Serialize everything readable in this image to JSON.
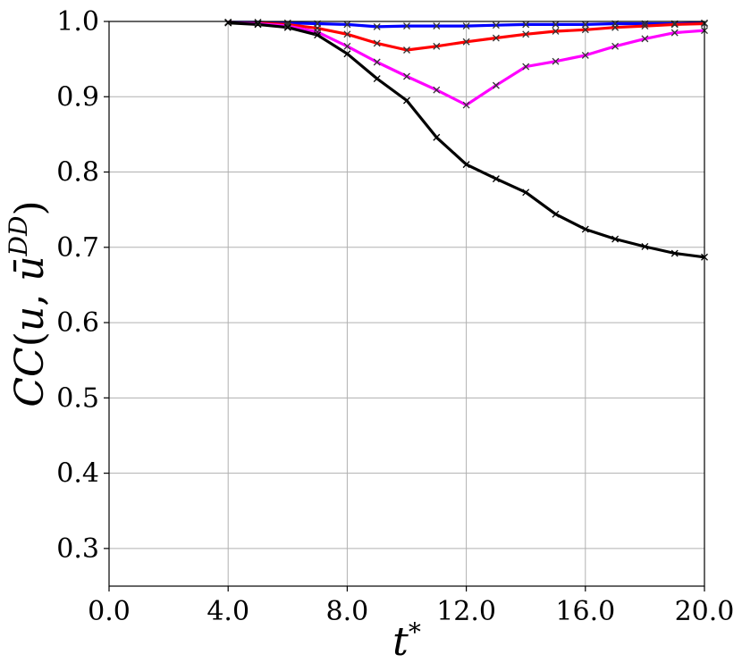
{
  "chart_data": {
    "type": "line",
    "title": "",
    "xlabel": "t*",
    "ylabel": "CC(u, ū^{DD})",
    "xlim": [
      0.0,
      20.0
    ],
    "ylim": [
      0.25,
      1.0
    ],
    "xticks": [
      0,
      4,
      8,
      12,
      16,
      20
    ],
    "xtick_labels": [
      "0.0",
      "4.0",
      "8.0",
      "12.0",
      "16.0",
      "20.0"
    ],
    "yticks": [
      0.3,
      0.4,
      0.5,
      0.6,
      0.7,
      0.8,
      0.9,
      1.0
    ],
    "ytick_labels": [
      "0.3",
      "0.4",
      "0.5",
      "0.6",
      "0.7",
      "0.8",
      "0.9",
      "1.0"
    ],
    "grid": true,
    "legend": false,
    "marker": "x",
    "series": [
      {
        "color": "#0000ff",
        "x": [
          4,
          5,
          6,
          7,
          8,
          9,
          10,
          11,
          12,
          13,
          14,
          15,
          16,
          17,
          18,
          19,
          20
        ],
        "y": [
          0.999,
          0.999,
          0.998,
          0.997,
          0.996,
          0.993,
          0.994,
          0.994,
          0.994,
          0.995,
          0.996,
          0.996,
          0.996,
          0.997,
          0.997,
          0.997,
          0.998
        ]
      },
      {
        "color": "#ff0000",
        "x": [
          4,
          5,
          6,
          7,
          8,
          9,
          10,
          11,
          12,
          13,
          14,
          15,
          16,
          17,
          18,
          19,
          20
        ],
        "y": [
          0.999,
          0.998,
          0.996,
          0.991,
          0.983,
          0.971,
          0.962,
          0.967,
          0.973,
          0.978,
          0.983,
          0.987,
          0.989,
          0.992,
          0.994,
          0.996,
          0.997
        ]
      },
      {
        "color": "#ff00ff",
        "x": [
          4,
          5,
          6,
          7,
          8,
          9,
          10,
          11,
          12,
          13,
          14,
          15,
          16,
          17,
          18,
          19,
          20
        ],
        "y": [
          0.999,
          0.997,
          0.994,
          0.986,
          0.967,
          0.946,
          0.927,
          0.909,
          0.889,
          0.915,
          0.94,
          0.947,
          0.955,
          0.967,
          0.977,
          0.985,
          0.988
        ]
      },
      {
        "color": "#000000",
        "x": [
          4,
          5,
          6,
          7,
          8,
          9,
          10,
          11,
          12,
          13,
          14,
          15,
          16,
          17,
          18,
          19,
          20
        ],
        "y": [
          0.998,
          0.996,
          0.992,
          0.982,
          0.957,
          0.924,
          0.895,
          0.846,
          0.81,
          0.791,
          0.773,
          0.744,
          0.724,
          0.711,
          0.701,
          0.692,
          0.687
        ]
      }
    ]
  }
}
